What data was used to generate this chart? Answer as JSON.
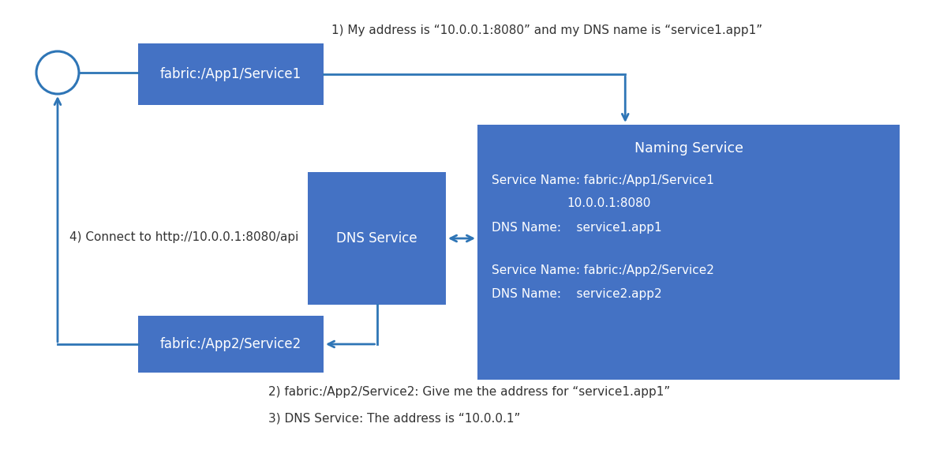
{
  "bg_color": "#ffffff",
  "box_color": "#4472c4",
  "arrow_color": "#2e75b6",
  "white": "#ffffff",
  "dark_text": "#333333",
  "box1_label": "fabric:/App1/Service1",
  "box2_label": "DNS Service",
  "box3_label": "fabric:/App2/Service2",
  "naming_title": "Naming Service",
  "ns_line1": "Service Name: fabric:/App1/Service1",
  "ns_line2": "10.0.0.1:8080",
  "ns_line3": "DNS Name:    service1.app1",
  "ns_line5": "Service Name: fabric:/App2/Service2",
  "ns_line6": "DNS Name:    service2.app2",
  "label1": "1) My address is “10.0.0.1:8080” and my DNS name is “service1.app1”",
  "label2": "2) fabric:/App2/Service2: Give me the address for “service1.app1”",
  "label3": "3) DNS Service: The address is “10.0.0.1”",
  "label4": "4) Connect to http://10.0.0.1:8080/api",
  "figsize": [
    12.0,
    6.03
  ],
  "dpi": 100
}
